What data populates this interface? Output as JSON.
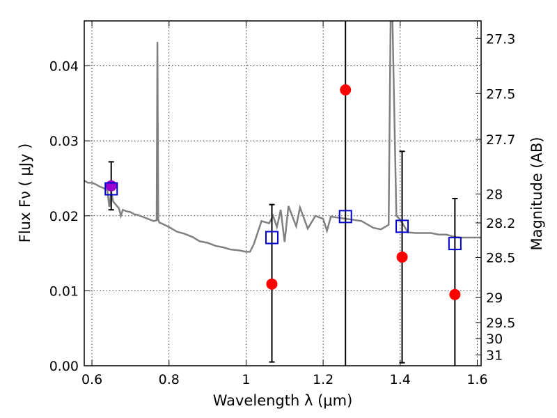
{
  "chart_data": {
    "type": "scatter",
    "title": "",
    "xlabel": "Wavelength  λ (μm)",
    "ylabel": "Flux  Fν  ( μJy )",
    "y2label": "Magnitude (AB)",
    "xlim": [
      0.58,
      1.61
    ],
    "ylim": [
      0.0,
      0.046
    ],
    "grid": true,
    "x_ticks": [
      0.6,
      0.8,
      1.0,
      1.2,
      1.4,
      1.6
    ],
    "x_tick_labels": [
      "0.6",
      "0.8",
      "1",
      "1.2",
      "1.4",
      "1.6"
    ],
    "y_ticks": [
      0.0,
      0.01,
      0.02,
      0.03,
      0.04
    ],
    "y_tick_labels": [
      "0.00",
      "0.01",
      "0.02",
      "0.03",
      "0.04"
    ],
    "y2_ticks": [
      27.3,
      27.5,
      27.7,
      28,
      28.2,
      28.5,
      29,
      29.5,
      30,
      31
    ],
    "y2_tick_labels": [
      "27.3",
      "27.5",
      "27.7",
      "28",
      "28.2",
      "28.5",
      "29",
      "29.5",
      "30",
      "31"
    ],
    "colors": {
      "model": "#808080",
      "observed": "#ff0000",
      "model_photometry": "#0000cc",
      "errorbar": "#000000",
      "overlap": "#9900cc"
    },
    "series": [
      {
        "kind": "line",
        "x": [
          0.58,
          0.59,
          0.6,
          0.61,
          0.62,
          0.63,
          0.64,
          0.645,
          0.65,
          0.655,
          0.66,
          0.67,
          0.675,
          0.68,
          0.69,
          0.7,
          0.71,
          0.72,
          0.73,
          0.74,
          0.75,
          0.76,
          0.768,
          0.77,
          0.772,
          0.775,
          0.78,
          0.8,
          0.82,
          0.84,
          0.86,
          0.88,
          0.9,
          0.92,
          0.94,
          0.96,
          0.98,
          1.0,
          1.01,
          1.02,
          1.04,
          1.06,
          1.07,
          1.08,
          1.09,
          1.1,
          1.11,
          1.13,
          1.14,
          1.16,
          1.18,
          1.2,
          1.21,
          1.22,
          1.26,
          1.3,
          1.33,
          1.35,
          1.36,
          1.37,
          1.375,
          1.38,
          1.39,
          1.4,
          1.42,
          1.44,
          1.46,
          1.48,
          1.5,
          1.52,
          1.54,
          1.56,
          1.58,
          1.61
        ],
        "y": [
          0.0247,
          0.0244,
          0.0244,
          0.0242,
          0.0239,
          0.0237,
          0.0234,
          0.0212,
          0.0232,
          0.0219,
          0.0216,
          0.021,
          0.02,
          0.0208,
          0.0206,
          0.0205,
          0.0202,
          0.0201,
          0.0199,
          0.0197,
          0.0195,
          0.0193,
          0.0194,
          0.0432,
          0.0195,
          0.0191,
          0.019,
          0.0185,
          0.0179,
          0.0176,
          0.0172,
          0.0166,
          0.0164,
          0.016,
          0.0158,
          0.0155,
          0.0154,
          0.0152,
          0.0152,
          0.0162,
          0.0193,
          0.019,
          0.02,
          0.0185,
          0.0208,
          0.0165,
          0.0213,
          0.0186,
          0.0211,
          0.0183,
          0.02,
          0.0196,
          0.018,
          0.0199,
          0.0196,
          0.0193,
          0.0184,
          0.0182,
          0.0185,
          0.0188,
          0.046,
          0.046,
          0.02,
          0.0195,
          0.0178,
          0.0177,
          0.0177,
          0.0177,
          0.0175,
          0.0175,
          0.0172,
          0.0171,
          0.0171,
          0.0171
        ]
      },
      {
        "kind": "marker-square",
        "x": [
          0.65,
          1.067,
          1.258,
          1.405,
          1.542
        ],
        "y": [
          0.0236,
          0.0171,
          0.0199,
          0.0186,
          0.0163
        ]
      },
      {
        "kind": "marker-circle",
        "x": [
          0.65,
          1.067,
          1.258,
          1.405,
          1.542
        ],
        "y": [
          0.024,
          0.0109,
          0.0368,
          0.0145,
          0.0095
        ],
        "yerr_low": [
          0.0032,
          0.0104,
          0.0368,
          0.0141,
          0.0095
        ],
        "yerr_high": [
          0.0032,
          0.0106,
          0.042,
          0.0141,
          0.0128
        ]
      }
    ]
  }
}
